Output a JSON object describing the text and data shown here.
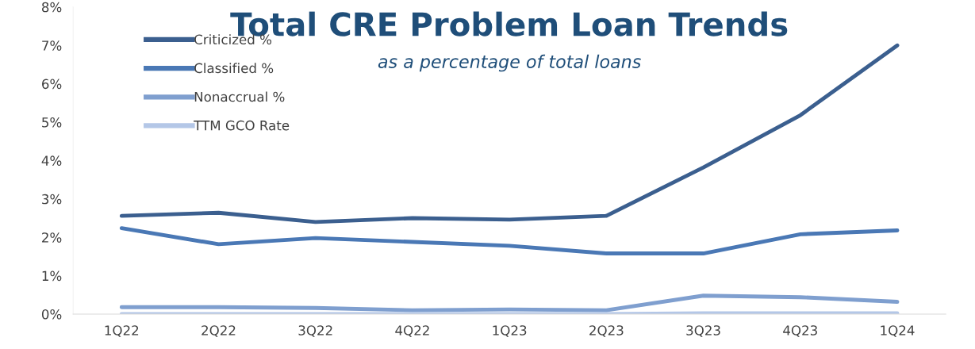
{
  "chart_data": {
    "type": "line",
    "title": "Total CRE Problem Loan Trends",
    "subtitle": "as a percentage of total loans",
    "categories": [
      "1Q22",
      "2Q22",
      "3Q22",
      "4Q22",
      "1Q23",
      "2Q23",
      "3Q23",
      "4Q23",
      "1Q24"
    ],
    "series": [
      {
        "name": "Criticized %",
        "color": "#3b5f8f",
        "values": [
          2.56,
          2.64,
          2.4,
          2.5,
          2.46,
          2.56,
          3.82,
          5.18,
          7.0
        ]
      },
      {
        "name": "Classified %",
        "color": "#4a78b5",
        "values": [
          2.24,
          1.82,
          1.98,
          1.88,
          1.78,
          1.58,
          1.58,
          2.08,
          2.18
        ]
      },
      {
        "name": "Nonaccrual %",
        "color": "#7f9fcf",
        "values": [
          0.18,
          0.18,
          0.16,
          0.1,
          0.12,
          0.1,
          0.48,
          0.44,
          0.32
        ]
      },
      {
        "name": "TTM GCO Rate",
        "color": "#b4c7e7",
        "values": [
          0,
          0,
          0,
          0,
          0,
          0,
          0.02,
          0.02,
          0.02
        ]
      }
    ],
    "ylim": [
      0,
      8
    ],
    "yticks": [
      {
        "value": 0,
        "label": "0%"
      },
      {
        "value": 1,
        "label": "1%"
      },
      {
        "value": 2,
        "label": "2%"
      },
      {
        "value": 3,
        "label": "3%"
      },
      {
        "value": 4,
        "label": "4%"
      },
      {
        "value": 5,
        "label": "5%"
      },
      {
        "value": 6,
        "label": "6%"
      },
      {
        "value": 7,
        "label": "7%"
      },
      {
        "value": 8,
        "label": "8%"
      }
    ],
    "grid": false,
    "legend": "top left",
    "marker": "none",
    "line_style": "solid"
  }
}
